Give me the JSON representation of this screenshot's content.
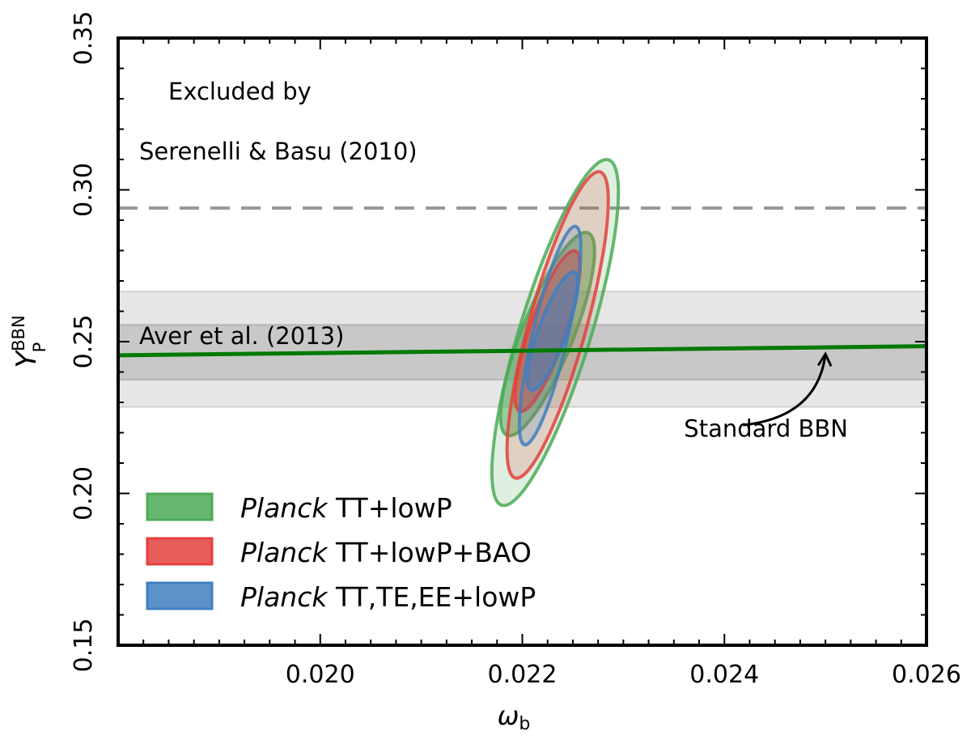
{
  "chart_data": {
    "type": "contour",
    "xlabel": "ω",
    "xlabel_sub": "b",
    "ylabel": "Y",
    "ylabel_sub": "P",
    "ylabel_sup": "BBN",
    "xlim": [
      0.018,
      0.026
    ],
    "ylim": [
      0.15,
      0.35
    ],
    "x_ticks": [
      0.02,
      0.022,
      0.024,
      0.026
    ],
    "x_tick_labels": [
      "0.020",
      "0.022",
      "0.024",
      "0.026"
    ],
    "y_ticks": [
      0.15,
      0.2,
      0.25,
      0.3,
      0.35
    ],
    "y_tick_labels": [
      "0.15",
      "0.20",
      "0.25",
      "0.30",
      "0.35"
    ],
    "grid": false,
    "legend_position": "bottom-left",
    "colors": {
      "green": "#4daa57",
      "red": "#e3413d",
      "blue": "#3f7fbf",
      "standard_bbn": "#007a00",
      "dashed_line": "#999999",
      "band_outer": "#e6e6e6",
      "band_inner": "#c8c8c8"
    },
    "series": [
      {
        "name_italic": "Planck",
        "name_rest": " TT+lowP",
        "color": "#4daa57",
        "center": [
          0.02225,
          0.252
        ],
        "contours": [
          {
            "level": "68%",
            "y_range": [
              0.219,
              0.286
            ],
            "x_range": [
              0.0216,
              0.0229
            ]
          },
          {
            "level": "95%",
            "y_range": [
              0.196,
              0.31
            ],
            "x_range": [
              0.02145,
              0.0232
            ]
          }
        ]
      },
      {
        "name_italic": "Planck",
        "name_rest": " TT+lowP+BAO",
        "color": "#e3413d",
        "center": [
          0.02225,
          0.252
        ],
        "contours": [
          {
            "level": "68%",
            "y_range": [
              0.227,
              0.28
            ],
            "x_range": [
              0.0218,
              0.0227
            ]
          },
          {
            "level": "95%",
            "y_range": [
              0.205,
              0.306
            ],
            "x_range": [
              0.02165,
              0.02305
            ]
          }
        ]
      },
      {
        "name_italic": "Planck",
        "name_rest": " TT,TE,EE+lowP",
        "color": "#3f7fbf",
        "center": [
          0.02225,
          0.253
        ],
        "contours": [
          {
            "level": "68%",
            "y_range": [
              0.234,
              0.273
            ],
            "x_range": [
              0.02195,
              0.02265
            ]
          },
          {
            "level": "95%",
            "y_range": [
              0.216,
              0.288
            ],
            "x_range": [
              0.02185,
              0.0227
            ]
          }
        ]
      }
    ],
    "standard_bbn_line": {
      "label": "Standard BBN",
      "points": [
        [
          0.018,
          0.2455
        ],
        [
          0.026,
          0.2485
        ]
      ],
      "arrow_tip": [
        0.025,
        0.2475
      ],
      "label_at": [
        0.0236,
        0.216
      ]
    },
    "aver_band": {
      "label": "Aver et al. (2013)",
      "center": 0.2465,
      "sigma1": [
        0.2375,
        0.2555
      ],
      "sigma2": [
        0.2285,
        0.2665
      ]
    },
    "serenelli_limit": {
      "label_line1": "Excluded by",
      "label_line2": "Serenelli & Basu (2010)",
      "y": 0.294
    }
  }
}
